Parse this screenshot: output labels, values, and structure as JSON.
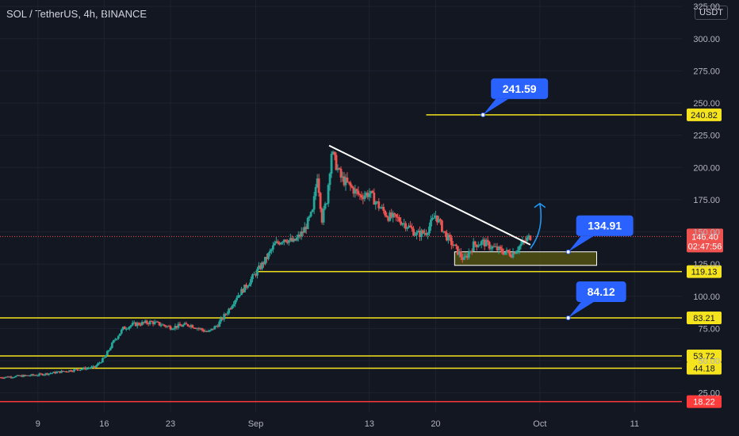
{
  "header": {
    "symbol_title": "SOL / TetherUS, 4h, BINANCE",
    "currency_button": "USDT"
  },
  "colors": {
    "background": "#131722",
    "up": "#26a69a",
    "down": "#ef5350",
    "level": "#f5e31e",
    "support_level": "#ff3b3b",
    "callout": "#2962ff",
    "trendline": "#ffffff",
    "zone_fill": "#5b5a12"
  },
  "chart_data": {
    "type": "candlestick",
    "symbol": "SOL / TetherUS",
    "interval": "4h",
    "exchange": "BINANCE",
    "y_axis": {
      "scale": "linear",
      "range": [
        10,
        330
      ],
      "ticks": [
        "325.00",
        "300.00",
        "275.00",
        "250.00",
        "225.00",
        "200.00",
        "175.00",
        "150.00",
        "125.00",
        "100.00",
        "75.00",
        "50.00",
        "25.00"
      ],
      "tick_values": [
        325,
        300,
        275,
        250,
        225,
        200,
        175,
        150,
        125,
        100,
        75,
        50,
        25
      ]
    },
    "x_axis": {
      "ticks": [
        {
          "label": "9",
          "date": "2021-08-09"
        },
        {
          "label": "16",
          "date": "2021-08-16"
        },
        {
          "label": "23",
          "date": "2021-08-23"
        },
        {
          "label": "Sep",
          "date": "2021-09-01"
        },
        {
          "label": "13",
          "date": "2021-09-13"
        },
        {
          "label": "20",
          "date": "2021-09-20"
        },
        {
          "label": "Oct",
          "date": "2021-10-01"
        },
        {
          "label": "11",
          "date": "2021-10-11"
        }
      ],
      "range": [
        "2021-08-05",
        "2021-10-16"
      ]
    },
    "price_path": [
      [
        "2021-08-05",
        37
      ],
      [
        "2021-08-09",
        39
      ],
      [
        "2021-08-12",
        42
      ],
      [
        "2021-08-15",
        45
      ],
      [
        "2021-08-16",
        52
      ],
      [
        "2021-08-17",
        65
      ],
      [
        "2021-08-18",
        75
      ],
      [
        "2021-08-19",
        78
      ],
      [
        "2021-08-21",
        80
      ],
      [
        "2021-08-23",
        76
      ],
      [
        "2021-08-25",
        78
      ],
      [
        "2021-08-27",
        72
      ],
      [
        "2021-08-28",
        78
      ],
      [
        "2021-08-29",
        88
      ],
      [
        "2021-08-30",
        100
      ],
      [
        "2021-08-31",
        108
      ],
      [
        "2021-09-01",
        118
      ],
      [
        "2021-09-02",
        128
      ],
      [
        "2021-09-03",
        140
      ],
      [
        "2021-09-04",
        145
      ],
      [
        "2021-09-05",
        142
      ],
      [
        "2021-09-06",
        150
      ],
      [
        "2021-09-07",
        165
      ],
      [
        "2021-09-07T12",
        195
      ],
      [
        "2021-09-08",
        160
      ],
      [
        "2021-09-08T12",
        175
      ],
      [
        "2021-09-09",
        212
      ],
      [
        "2021-09-10",
        192
      ],
      [
        "2021-09-11",
        185
      ],
      [
        "2021-09-12",
        178
      ],
      [
        "2021-09-13",
        180
      ],
      [
        "2021-09-14",
        170
      ],
      [
        "2021-09-15",
        162
      ],
      [
        "2021-09-16",
        160
      ],
      [
        "2021-09-17",
        155
      ],
      [
        "2021-09-18",
        148
      ],
      [
        "2021-09-19",
        150
      ],
      [
        "2021-09-20",
        163
      ],
      [
        "2021-09-21",
        148
      ],
      [
        "2021-09-22",
        138
      ],
      [
        "2021-09-23",
        128
      ],
      [
        "2021-09-24",
        140
      ],
      [
        "2021-09-25",
        142
      ],
      [
        "2021-09-26",
        138
      ],
      [
        "2021-09-27",
        135
      ],
      [
        "2021-09-28",
        133
      ],
      [
        "2021-09-29",
        140
      ],
      [
        "2021-09-30",
        146.4
      ]
    ],
    "last_price": {
      "value": 146.4,
      "label": "146.40",
      "countdown": "02:47:56"
    },
    "horizontal_levels": [
      {
        "value": 240.82,
        "label": "240.82",
        "color": "yellow",
        "from": "2021-09-19"
      },
      {
        "value": 119.13,
        "label": "119.13",
        "color": "yellow",
        "from": "2021-09-01"
      },
      {
        "value": 83.21,
        "label": "83.21",
        "color": "yellow",
        "from": "2021-08-05"
      },
      {
        "value": 53.72,
        "label": "53.72",
        "color": "yellow",
        "from": "2021-08-05"
      },
      {
        "value": 44.18,
        "label": "44.18",
        "color": "yellow",
        "from": "2021-08-05"
      },
      {
        "value": 18.22,
        "label": "18.22",
        "color": "red",
        "from": "2021-08-05"
      }
    ],
    "zone": {
      "from": "2021-09-22",
      "to": "2021-10-07",
      "low": 124,
      "high": 134.5
    },
    "trendline": {
      "from": [
        "2021-09-08T18",
        217
      ],
      "to": [
        "2021-09-30",
        140
      ]
    },
    "callouts": [
      {
        "text": "241.59",
        "at_date": "2021-09-25",
        "at_value": 240.82
      },
      {
        "text": "134.91",
        "at_date": "2021-10-04",
        "at_value": 134.5
      },
      {
        "text": "84.12",
        "at_date": "2021-10-04",
        "at_value": 83.21
      }
    ],
    "arrow": {
      "from": [
        "2021-09-30",
        137
      ],
      "to": [
        "2021-10-01",
        172
      ]
    },
    "grid": true,
    "legend": "none"
  }
}
